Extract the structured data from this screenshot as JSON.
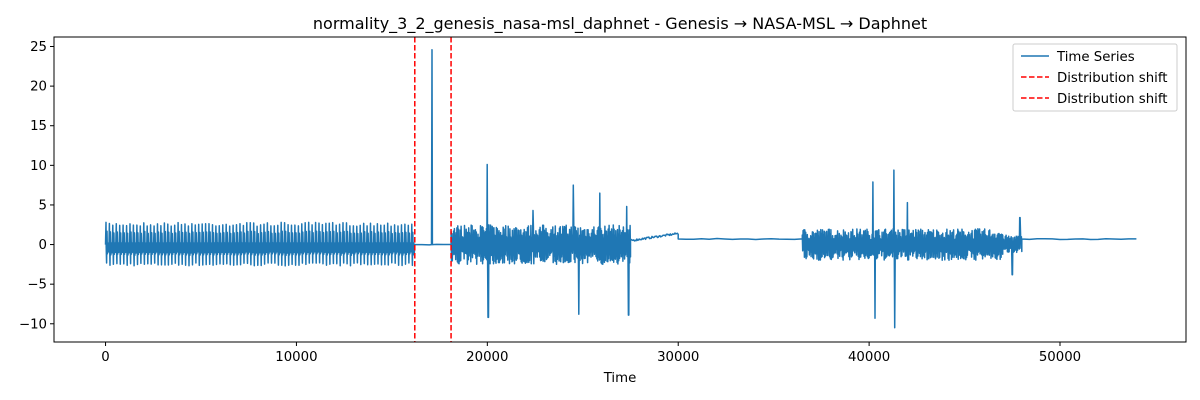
{
  "chart_data": {
    "type": "line",
    "title": "normality_3_2_genesis_nasa-msl_daphnet - Genesis → NASA-MSL → Daphnet",
    "xlabel": "Time",
    "ylabel": "",
    "xlim": [
      -2700,
      56600
    ],
    "ylim": [
      -12.3,
      26.2
    ],
    "x_ticks": [
      0,
      10000,
      20000,
      30000,
      40000,
      50000
    ],
    "y_ticks": [
      -10,
      -5,
      0,
      5,
      10,
      15,
      20,
      25
    ],
    "grid": false,
    "legend_position": "top-right",
    "colors": {
      "series": "#1f77b4",
      "shift": "#ff0000"
    },
    "series": [
      {
        "name": "Time Series",
        "style": "solid",
        "segments": [
          {
            "x_start": 0,
            "x_end": 16200,
            "pattern": "oscillation",
            "low": -2.7,
            "high": 2.8,
            "approx_cycles": 90
          },
          {
            "x_start": 16200,
            "x_end": 18100,
            "pattern": "flat",
            "level": 0.0,
            "spikes": [
              {
                "x": 17100,
                "y": 24.6
              }
            ]
          },
          {
            "x_start": 18100,
            "x_end": 27500,
            "pattern": "noisy",
            "typical_low": -2.5,
            "typical_high": 2.5,
            "peaks": [
              {
                "x": 20000,
                "y": 10.1
              },
              {
                "x": 20050,
                "y": -9.2
              },
              {
                "x": 22400,
                "y": 4.3
              },
              {
                "x": 24500,
                "y": 7.5
              },
              {
                "x": 24800,
                "y": -8.8
              },
              {
                "x": 25900,
                "y": 6.5
              },
              {
                "x": 27300,
                "y": 4.8
              },
              {
                "x": 27400,
                "y": -8.9
              }
            ]
          },
          {
            "x_start": 27500,
            "x_end": 30000,
            "pattern": "drift",
            "from": 0.5,
            "to": 1.4
          },
          {
            "x_start": 30000,
            "x_end": 36500,
            "pattern": "flat",
            "level": 0.7
          },
          {
            "x_start": 36500,
            "x_end": 47000,
            "pattern": "noisy",
            "typical_low": -2.0,
            "typical_high": 2.0,
            "peaks": [
              {
                "x": 40200,
                "y": 7.9
              },
              {
                "x": 40300,
                "y": -9.3
              },
              {
                "x": 41300,
                "y": 9.4
              },
              {
                "x": 41350,
                "y": -10.5
              },
              {
                "x": 42000,
                "y": 5.3
              }
            ]
          },
          {
            "x_start": 47000,
            "x_end": 48000,
            "pattern": "noisy",
            "typical_low": -1.0,
            "typical_high": 1.2,
            "peaks": [
              {
                "x": 47500,
                "y": -3.8
              },
              {
                "x": 47900,
                "y": 3.4
              }
            ]
          },
          {
            "x_start": 48000,
            "x_end": 54000,
            "pattern": "flat",
            "level": 0.7
          }
        ]
      },
      {
        "name": "Distribution shift",
        "style": "dashed",
        "x": 16200
      },
      {
        "name": "Distribution shift",
        "style": "dashed",
        "x": 18100
      }
    ]
  }
}
